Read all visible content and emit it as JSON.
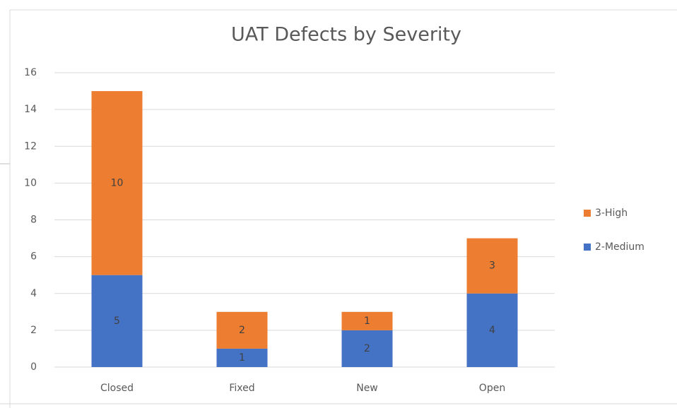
{
  "chart_data": {
    "type": "stacked_bar",
    "title": "UAT Defects by Severity",
    "categories": [
      "Closed",
      "Fixed",
      "New",
      "Open"
    ],
    "series": [
      {
        "name": "2-Medium",
        "color": "#4472c4",
        "values": [
          5,
          1,
          2,
          4
        ]
      },
      {
        "name": "3-High",
        "color": "#ed7d31",
        "values": [
          10,
          2,
          1,
          3
        ]
      }
    ],
    "ylim": [
      0,
      16
    ],
    "yticks": [
      0,
      2,
      4,
      6,
      8,
      10,
      12,
      14,
      16
    ],
    "grid": true,
    "legend": "right",
    "data_labels": true
  }
}
